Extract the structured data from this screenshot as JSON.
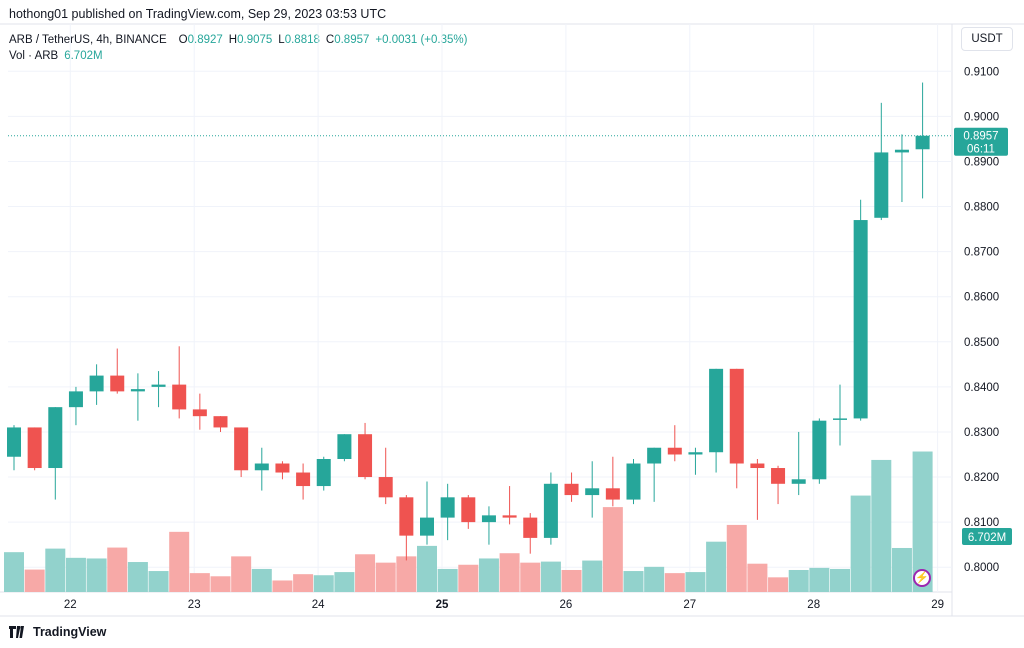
{
  "header": {
    "publisher_line": "hothong01 published on TradingView.com, Sep 29, 2023 03:53 UTC"
  },
  "legend": {
    "symbol": "ARB / TetherUS, 4h, BINANCE",
    "o_label": "O",
    "o_value": "0.8927",
    "h_label": "H",
    "h_value": "0.9075",
    "l_label": "L",
    "l_value": "0.8818",
    "c_label": "C",
    "c_value": "0.8957",
    "change": "+0.0031 (+0.35%)",
    "vol_label": "Vol · ARB",
    "vol_value": "6.702M"
  },
  "currency_button": "USDT",
  "price_tag": {
    "price": "0.8957",
    "countdown": "06:11"
  },
  "volume_tag": "6.702M",
  "footer": {
    "brand": "TradingView"
  },
  "colors": {
    "up": "#26a69a",
    "down": "#ef5350",
    "up_vol": "#92d2cc",
    "down_vol": "#f7a9a7",
    "grid": "#f0f3fa",
    "text": "#131722"
  },
  "icons": {
    "flash": "lightning-icon",
    "logo": "tradingview-logo-icon"
  },
  "chart_data": {
    "type": "candlestick",
    "symbol": "ARB / TetherUS",
    "interval": "4h",
    "exchange": "BINANCE",
    "ylim": [
      0.7945,
      0.9125
    ],
    "y_ticks": [
      "0.9100",
      "0.9000",
      "0.8900",
      "0.8800",
      "0.8700",
      "0.8600",
      "0.8500",
      "0.8400",
      "0.8300",
      "0.8200",
      "0.8100",
      "0.8000"
    ],
    "x_ticks": [
      {
        "label": "22",
        "index": 2,
        "bold": false
      },
      {
        "label": "23",
        "index": 8,
        "bold": false
      },
      {
        "label": "24",
        "index": 14,
        "bold": false
      },
      {
        "label": "25",
        "index": 20,
        "bold": true
      },
      {
        "label": "26",
        "index": 26,
        "bold": false
      },
      {
        "label": "27",
        "index": 32,
        "bold": false
      },
      {
        "label": "28",
        "index": 38,
        "bold": false
      },
      {
        "label": "29",
        "index": 44,
        "bold": false
      }
    ],
    "last_price": 0.8957,
    "volume_max": 6.702,
    "candles": [
      {
        "o": 0.8245,
        "h": 0.8315,
        "l": 0.8215,
        "c": 0.831,
        "v": 1.9
      },
      {
        "o": 0.831,
        "h": 0.831,
        "l": 0.8215,
        "c": 0.822,
        "v": 1.07
      },
      {
        "o": 0.822,
        "h": 0.8355,
        "l": 0.815,
        "c": 0.8355,
        "v": 2.07
      },
      {
        "o": 0.8355,
        "h": 0.84,
        "l": 0.8315,
        "c": 0.839,
        "v": 1.63
      },
      {
        "o": 0.839,
        "h": 0.845,
        "l": 0.836,
        "c": 0.8425,
        "v": 1.6
      },
      {
        "o": 0.8425,
        "h": 0.8485,
        "l": 0.8385,
        "c": 0.839,
        "v": 2.12
      },
      {
        "o": 0.839,
        "h": 0.843,
        "l": 0.8325,
        "c": 0.8395,
        "v": 1.43
      },
      {
        "o": 0.84,
        "h": 0.8435,
        "l": 0.8355,
        "c": 0.8405,
        "v": 1.0
      },
      {
        "o": 0.8405,
        "h": 0.849,
        "l": 0.833,
        "c": 0.835,
        "v": 2.87
      },
      {
        "o": 0.835,
        "h": 0.8385,
        "l": 0.8305,
        "c": 0.8335,
        "v": 0.9
      },
      {
        "o": 0.8335,
        "h": 0.8335,
        "l": 0.83,
        "c": 0.831,
        "v": 0.75
      },
      {
        "o": 0.831,
        "h": 0.831,
        "l": 0.82,
        "c": 0.8215,
        "v": 1.7
      },
      {
        "o": 0.8215,
        "h": 0.8265,
        "l": 0.817,
        "c": 0.823,
        "v": 1.1
      },
      {
        "o": 0.823,
        "h": 0.8235,
        "l": 0.8195,
        "c": 0.821,
        "v": 0.55
      },
      {
        "o": 0.821,
        "h": 0.823,
        "l": 0.815,
        "c": 0.818,
        "v": 0.85
      },
      {
        "o": 0.818,
        "h": 0.8245,
        "l": 0.817,
        "c": 0.824,
        "v": 0.8
      },
      {
        "o": 0.824,
        "h": 0.8295,
        "l": 0.8235,
        "c": 0.8295,
        "v": 0.95
      },
      {
        "o": 0.8295,
        "h": 0.832,
        "l": 0.8195,
        "c": 0.82,
        "v": 1.8
      },
      {
        "o": 0.82,
        "h": 0.8265,
        "l": 0.814,
        "c": 0.8155,
        "v": 1.4
      },
      {
        "o": 0.8155,
        "h": 0.816,
        "l": 0.8015,
        "c": 0.807,
        "v": 1.7
      },
      {
        "o": 0.807,
        "h": 0.819,
        "l": 0.805,
        "c": 0.811,
        "v": 2.2
      },
      {
        "o": 0.811,
        "h": 0.8185,
        "l": 0.806,
        "c": 0.8155,
        "v": 1.1
      },
      {
        "o": 0.8155,
        "h": 0.816,
        "l": 0.8085,
        "c": 0.81,
        "v": 1.3
      },
      {
        "o": 0.81,
        "h": 0.8135,
        "l": 0.805,
        "c": 0.8115,
        "v": 1.6
      },
      {
        "o": 0.8115,
        "h": 0.818,
        "l": 0.8095,
        "c": 0.811,
        "v": 1.85
      },
      {
        "o": 0.811,
        "h": 0.812,
        "l": 0.803,
        "c": 0.8065,
        "v": 1.4
      },
      {
        "o": 0.8065,
        "h": 0.821,
        "l": 0.805,
        "c": 0.8185,
        "v": 1.45
      },
      {
        "o": 0.8185,
        "h": 0.821,
        "l": 0.8145,
        "c": 0.816,
        "v": 1.05
      },
      {
        "o": 0.816,
        "h": 0.8235,
        "l": 0.811,
        "c": 0.8175,
        "v": 1.5
      },
      {
        "o": 0.8175,
        "h": 0.8245,
        "l": 0.8135,
        "c": 0.815,
        "v": 4.05
      },
      {
        "o": 0.815,
        "h": 0.824,
        "l": 0.814,
        "c": 0.823,
        "v": 1.0
      },
      {
        "o": 0.823,
        "h": 0.8265,
        "l": 0.8145,
        "c": 0.8265,
        "v": 1.2
      },
      {
        "o": 0.8265,
        "h": 0.8315,
        "l": 0.8235,
        "c": 0.825,
        "v": 0.9
      },
      {
        "o": 0.825,
        "h": 0.8265,
        "l": 0.8205,
        "c": 0.8255,
        "v": 0.95
      },
      {
        "o": 0.8255,
        "h": 0.844,
        "l": 0.821,
        "c": 0.844,
        "v": 2.4
      },
      {
        "o": 0.844,
        "h": 0.844,
        "l": 0.8175,
        "c": 0.823,
        "v": 3.2
      },
      {
        "o": 0.823,
        "h": 0.824,
        "l": 0.8105,
        "c": 0.822,
        "v": 1.35
      },
      {
        "o": 0.822,
        "h": 0.8225,
        "l": 0.814,
        "c": 0.8185,
        "v": 0.7
      },
      {
        "o": 0.8185,
        "h": 0.83,
        "l": 0.816,
        "c": 0.8195,
        "v": 1.05
      },
      {
        "o": 0.8195,
        "h": 0.833,
        "l": 0.8185,
        "c": 0.8325,
        "v": 1.15
      },
      {
        "o": 0.833,
        "h": 0.8405,
        "l": 0.827,
        "c": 0.833,
        "v": 1.1
      },
      {
        "o": 0.833,
        "h": 0.8815,
        "l": 0.8325,
        "c": 0.877,
        "v": 4.6
      },
      {
        "o": 0.8775,
        "h": 0.903,
        "l": 0.877,
        "c": 0.892,
        "v": 6.3
      },
      {
        "o": 0.892,
        "h": 0.896,
        "l": 0.881,
        "c": 0.8926,
        "v": 2.1
      },
      {
        "o": 0.8927,
        "h": 0.9075,
        "l": 0.8818,
        "c": 0.8957,
        "v": 6.702
      }
    ]
  }
}
